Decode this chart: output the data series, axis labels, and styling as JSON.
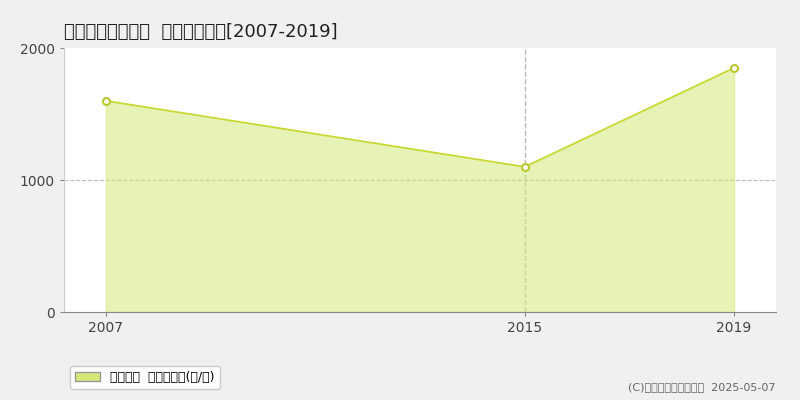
{
  "title": "三戸郡南部町剣吉  林地価格推移[2007-2019]",
  "years": [
    2007,
    2015,
    2019
  ],
  "values": [
    1600,
    1100,
    1850
  ],
  "line_color": "#c8d832",
  "fill_color": "#d4e87a",
  "fill_alpha": 0.55,
  "marker_color": "#ffffff",
  "marker_edge_color": "#b8c830",
  "ylim": [
    0,
    2000
  ],
  "xlim": [
    2006.2,
    2019.8
  ],
  "yticks": [
    0,
    1000,
    2000
  ],
  "xticks": [
    2007,
    2015,
    2019
  ],
  "vline_x": 2015,
  "hline_y": 1000,
  "legend_label": "林地価格  平均坪単価(円/坪)",
  "copyright_text": "(C)土地価格ドットコム  2025-05-07",
  "bg_color": "#f0f0f0",
  "plot_bg_color": "#ffffff",
  "title_fontsize": 13,
  "tick_fontsize": 10,
  "legend_fontsize": 9
}
